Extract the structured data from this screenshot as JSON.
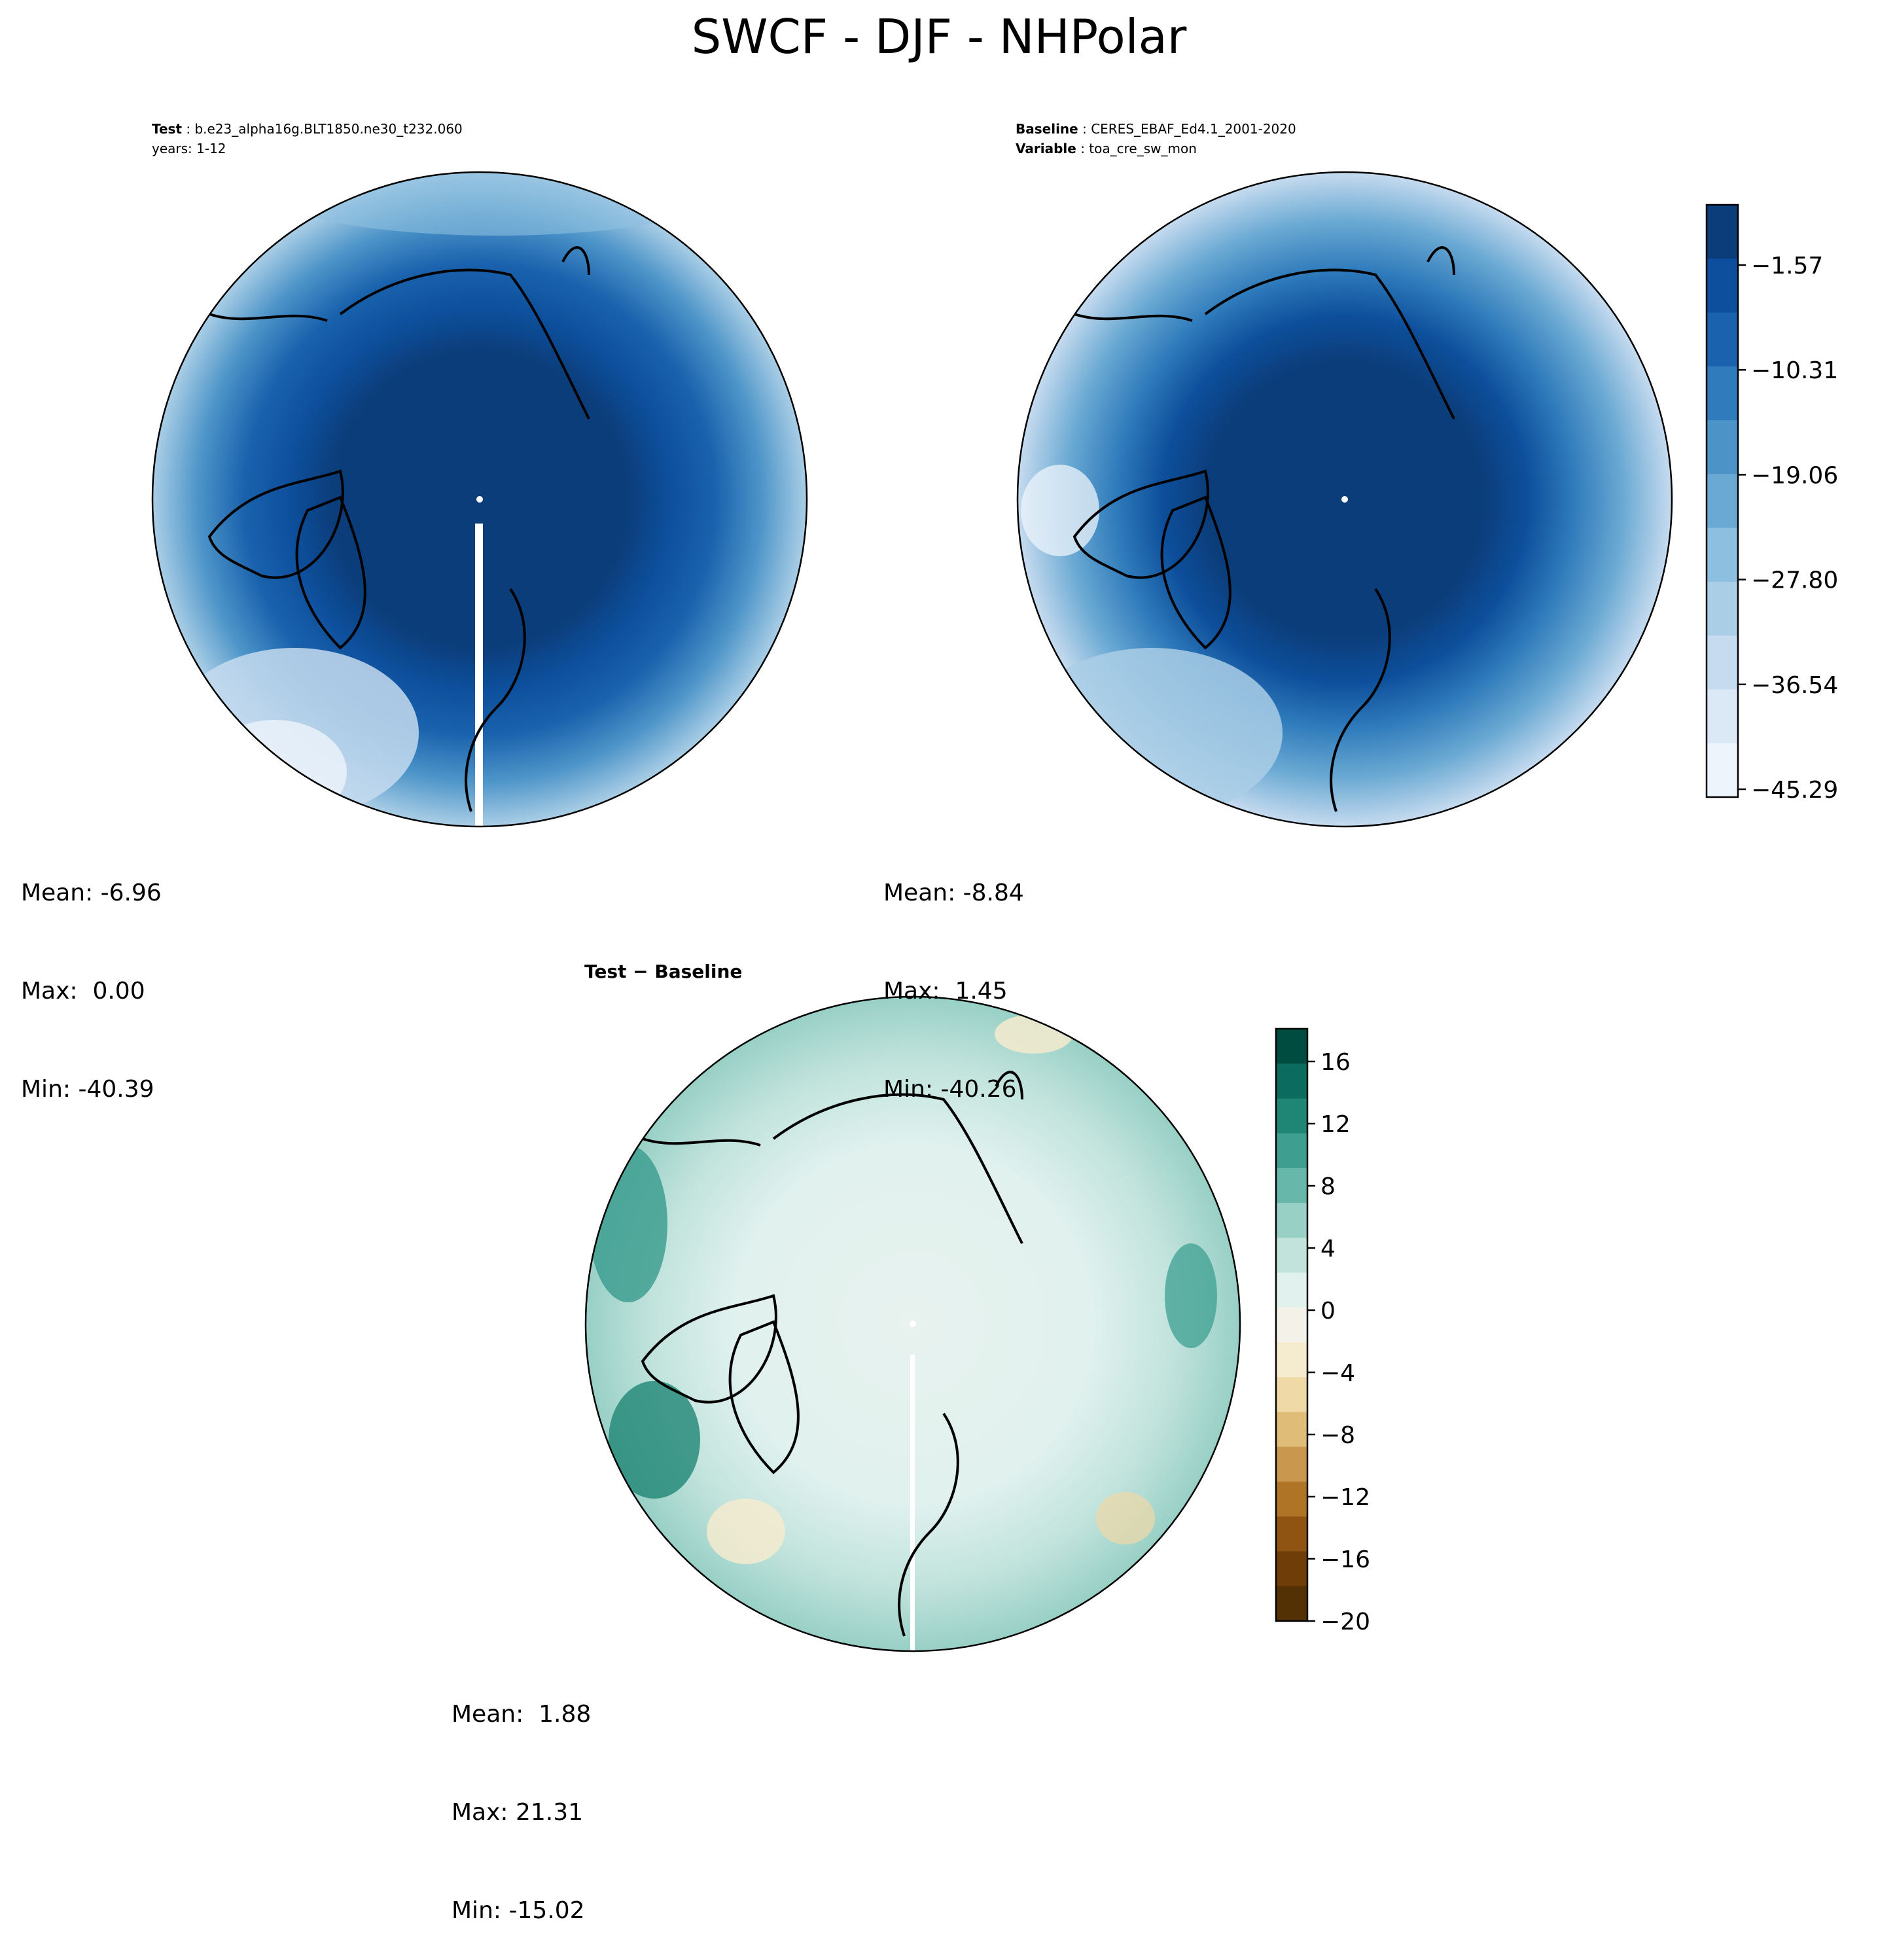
{
  "figure": {
    "title": "SWCF - DJF - NHPolar"
  },
  "panels": {
    "test": {
      "header_label": "Test",
      "header_value": "b.e23_alpha16g.BLT1850.ne30_t232.060",
      "header_line2": "years: 1-12",
      "stats": {
        "mean": "Mean: -6.96",
        "max": "Max:  0.00",
        "min": "Min: -40.39"
      }
    },
    "baseline": {
      "header_label": "Baseline",
      "header_value": "CERES_EBAF_Ed4.1_2001-2020",
      "variable_label": "Variable",
      "variable_value": "toa_cre_sw_mon",
      "stats": {
        "mean": "Mean: -8.84",
        "max": "Max:  1.45",
        "min": "Min: -40.26"
      }
    },
    "diff": {
      "title": "Test − Baseline",
      "stats": {
        "mean": "Mean:  1.88",
        "max": "Max: 21.31",
        "min": "Min: -15.02"
      }
    }
  },
  "colorbars": {
    "main": {
      "cmap": "Blues_r",
      "tick_labels": [
        "−1.57",
        "−10.31",
        "−19.06",
        "−27.80",
        "−36.54",
        "−45.29"
      ],
      "colors": [
        "#0b3d7a",
        "#0d4f9c",
        "#1a62ad",
        "#2f7bbb",
        "#4c94c8",
        "#6aa9d3",
        "#8dbfe0",
        "#aacee6",
        "#c6dbef",
        "#dbe8f5",
        "#eef4fb"
      ]
    },
    "diff": {
      "cmap": "BrBG",
      "tick_labels": [
        "16",
        "12",
        "8",
        "4",
        "0",
        "−4",
        "−8",
        "−12",
        "−16",
        "−20"
      ],
      "colors": [
        "#004c40",
        "#0b6b5e",
        "#1f8676",
        "#3e9f91",
        "#67b8ab",
        "#98d0c6",
        "#c1e3dc",
        "#e0f1ee",
        "#f4f2e8",
        "#f5ebcf",
        "#efd9a6",
        "#dfbc78",
        "#c9974d",
        "#b07426",
        "#8f5412",
        "#6e3d08",
        "#543005"
      ]
    }
  }
}
